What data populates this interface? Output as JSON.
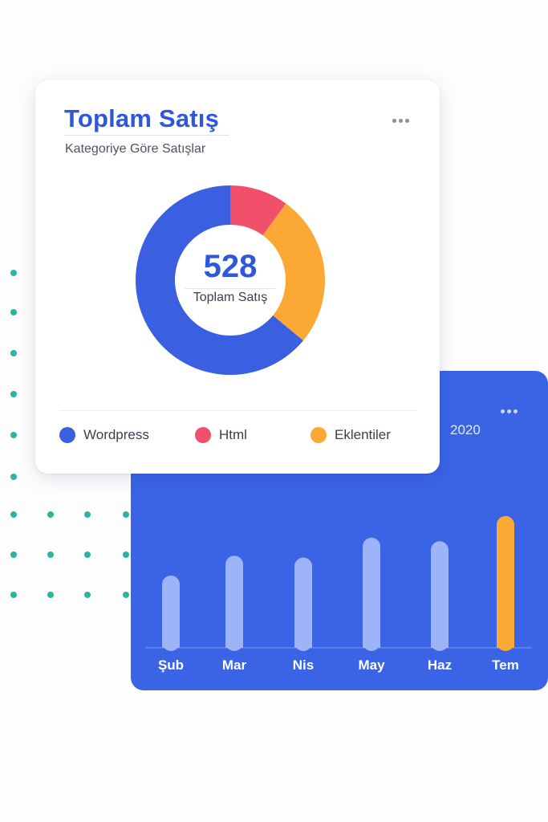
{
  "donut_card": {
    "title": "Toplam Satış",
    "subtitle": "Kategoriye Göre Satışlar",
    "center_value": "528",
    "center_label": "Toplam Satış",
    "legend": [
      {
        "label": "Wordpress",
        "color": "#3a5fe0"
      },
      {
        "label": "Html",
        "color": "#f24f6b"
      },
      {
        "label": "Eklentiler",
        "color": "#fba834"
      }
    ]
  },
  "bar_card": {
    "year": "2020"
  },
  "chart_data": [
    {
      "type": "pie",
      "title": "Toplam Satış",
      "subtitle": "Kategoriye Göre Satışlar",
      "total": 528,
      "categories": [
        "Html",
        "Eklentiler",
        "Wordpress"
      ],
      "values": [
        10,
        26,
        64
      ],
      "colors": [
        "#f24f6b",
        "#fba834",
        "#3a5fe0"
      ],
      "unit": "percent"
    },
    {
      "type": "bar",
      "title": "2020",
      "categories": [
        "Şub",
        "Mar",
        "Nis",
        "May",
        "Haz",
        "Tem"
      ],
      "values": [
        40,
        51,
        50,
        61,
        59,
        73
      ],
      "highlight_index": 5,
      "colors": {
        "default": "#9db4fb",
        "highlight": "#fba834",
        "background": "#3a63e6"
      },
      "ylim": [
        0,
        100
      ],
      "grid": false
    }
  ]
}
